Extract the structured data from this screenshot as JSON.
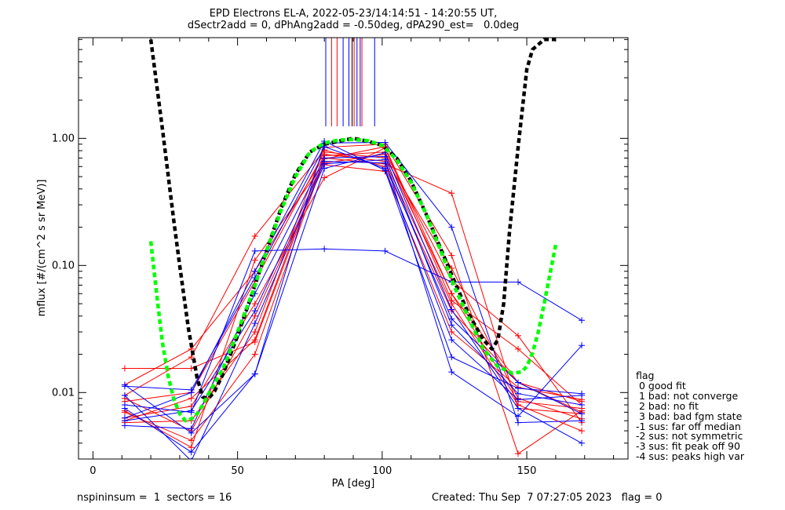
{
  "title_line1": "EPD Electrons EL-A, 2022-05-23/14:14:51 - 14:20:55 UT,",
  "title_line2": "dSectr2add = 0, dPhAng2add = -0.50deg, dPA290_est=   0.0deg",
  "footer_left": "nspininsum =  1  sectors = 16",
  "footer_right": "Created: Thu Sep  7 07:27:05 2023   flag = 0",
  "legend": {
    "title": "flag",
    "items": [
      " 0 good fit",
      " 1 bad: not converge",
      " 2 bad: no fit",
      " 3 bad: bad fgm state",
      "-1 sus: far off median",
      "-2 sus: not symmetric",
      "-3 sus: fit peak off 90",
      "-4 sus: peaks high var"
    ]
  },
  "colors": {
    "red": "#ff0000",
    "blue": "#0000ff",
    "fit": "#000000",
    "fit2": "#00ff00",
    "axis": "#000000"
  },
  "chart_data": {
    "type": "line",
    "xlabel": "PA [deg]",
    "ylabel": "mflux [#/(cm^2 s sr MeV)]",
    "xlim": [
      -5,
      185
    ],
    "ylim": [
      0.003,
      6.2
    ],
    "yscale": "log",
    "xticks": [
      0,
      50,
      100,
      150
    ],
    "xtick_labels": [
      "0",
      "50",
      "100",
      "150"
    ],
    "yticks": [
      0.01,
      0.1,
      1.0
    ],
    "ytick_labels": [
      "0.01",
      "0.10",
      "1.00"
    ],
    "series": [
      {
        "color": "red",
        "x": [
          11,
          34,
          56,
          80,
          101,
          124,
          147,
          169
        ],
        "y": [
          0.0155,
          0.0155,
          0.025,
          0.7,
          0.63,
          0.37,
          0.0075,
          0.0068
        ]
      },
      {
        "color": "red",
        "x": [
          11,
          34,
          56,
          80,
          101,
          124,
          147,
          169
        ],
        "y": [
          0.0072,
          0.0037,
          0.11,
          0.64,
          0.75,
          0.06,
          0.012,
          0.007
        ]
      },
      {
        "color": "red",
        "x": [
          11,
          34,
          56,
          80,
          101,
          124,
          147,
          169
        ],
        "y": [
          0.0058,
          0.006,
          0.03,
          0.85,
          0.9,
          0.12,
          0.0033,
          0.0072
        ]
      },
      {
        "color": "red",
        "x": [
          11,
          34,
          56,
          80,
          101,
          124,
          147,
          169
        ],
        "y": [
          0.0095,
          0.019,
          0.17,
          0.81,
          0.6,
          0.044,
          0.012,
          0.0085
        ]
      },
      {
        "color": "red",
        "x": [
          11,
          34,
          56,
          80,
          101,
          124,
          147,
          169
        ],
        "y": [
          0.0115,
          0.022,
          0.09,
          0.73,
          0.78,
          0.076,
          0.028,
          0.0058
        ]
      },
      {
        "color": "red",
        "x": [
          11,
          34,
          56,
          80,
          101,
          124,
          147,
          169
        ],
        "y": [
          0.0063,
          0.0078,
          0.05,
          0.49,
          0.84,
          0.053,
          0.022,
          0.008
        ]
      },
      {
        "color": "red",
        "x": [
          11,
          34,
          56,
          80,
          101,
          124,
          147,
          169
        ],
        "y": [
          0.0085,
          0.01,
          0.075,
          0.78,
          0.7,
          0.095,
          0.009,
          0.0062
        ]
      },
      {
        "color": "red",
        "x": [
          11,
          34,
          56,
          80,
          101,
          124,
          147,
          169
        ],
        "y": [
          0.007,
          0.0042,
          0.02,
          0.69,
          0.86,
          0.06,
          0.0085,
          0.0075
        ]
      },
      {
        "color": "red",
        "x": [
          11,
          34,
          56,
          80,
          101,
          124,
          147,
          169
        ],
        "y": [
          0.009,
          0.005,
          0.04,
          0.62,
          0.55,
          0.03,
          0.011,
          0.0088
        ]
      },
      {
        "color": "red",
        "x": [
          11,
          34,
          56,
          80,
          101,
          124,
          147,
          169
        ],
        "y": [
          0.006,
          0.009,
          0.026,
          0.75,
          0.66,
          0.05,
          0.008,
          0.005
        ]
      },
      {
        "color": "blue",
        "x": [
          11,
          34,
          56,
          80,
          101,
          124,
          147,
          169
        ],
        "y": [
          0.0115,
          0.0048,
          0.014,
          0.92,
          0.93,
          0.2,
          0.0058,
          0.006
        ]
      },
      {
        "color": "blue",
        "x": [
          11,
          34,
          56,
          80,
          101,
          124,
          147,
          169
        ],
        "y": [
          0.008,
          0.007,
          0.13,
          0.135,
          0.13,
          0.074,
          0.074,
          0.037
        ]
      },
      {
        "color": "blue",
        "x": [
          11,
          34,
          56,
          80,
          101,
          124,
          147,
          169
        ],
        "y": [
          0.0063,
          0.01,
          0.09,
          0.95,
          0.56,
          0.019,
          0.0108,
          0.0098
        ]
      },
      {
        "color": "blue",
        "x": [
          11,
          34,
          56,
          80,
          101,
          124,
          147,
          169
        ],
        "y": [
          0.0095,
          0.0029,
          0.035,
          0.63,
          0.68,
          0.0145,
          0.0065,
          0.0235
        ]
      },
      {
        "color": "blue",
        "x": [
          11,
          34,
          56,
          80,
          101,
          124,
          147,
          169
        ],
        "y": [
          0.0055,
          0.0052,
          0.06,
          0.7,
          0.72,
          0.034,
          0.0098,
          0.008
        ]
      },
      {
        "color": "blue",
        "x": [
          11,
          34,
          56,
          80,
          101,
          124,
          147,
          169
        ],
        "y": [
          0.0075,
          0.0034,
          0.014,
          0.58,
          0.77,
          0.045,
          0.0075,
          0.004
        ]
      },
      {
        "color": "blue",
        "x": [
          11,
          34,
          56,
          80,
          101,
          124,
          147,
          169
        ],
        "y": [
          0.0112,
          0.0105,
          0.08,
          0.86,
          0.58,
          0.026,
          0.0088,
          0.0095
        ]
      },
      {
        "color": "blue",
        "x": [
          11,
          34,
          56,
          80,
          101,
          124,
          147,
          169
        ],
        "y": [
          0.006,
          0.0072,
          0.044,
          0.66,
          0.64,
          0.038,
          0.012,
          0.0068
        ]
      }
    ],
    "fit_curves": [
      {
        "color": "fit",
        "style": "dashed",
        "x": [
          20,
          24,
          28,
          30,
          33,
          36,
          38,
          40,
          42,
          45,
          50,
          55,
          60,
          65,
          70,
          75,
          80,
          85,
          90,
          95,
          100,
          105,
          110,
          115,
          120,
          125,
          130,
          135,
          138,
          140,
          142,
          144,
          147,
          150,
          152,
          156,
          160
        ],
        "y": [
          6.0,
          1.2,
          0.22,
          0.1,
          0.032,
          0.013,
          0.0092,
          0.009,
          0.0102,
          0.014,
          0.028,
          0.06,
          0.13,
          0.28,
          0.52,
          0.78,
          0.9,
          0.95,
          1.0,
          0.95,
          0.88,
          0.7,
          0.46,
          0.26,
          0.14,
          0.075,
          0.041,
          0.026,
          0.022,
          0.026,
          0.05,
          0.18,
          0.85,
          3.5,
          5.0,
          6.0,
          6.0
        ]
      },
      {
        "color": "fit2",
        "style": "dashed",
        "x": [
          20,
          22,
          24,
          26,
          28,
          30,
          32,
          34,
          36,
          38,
          40,
          45,
          50,
          55,
          60,
          65,
          70,
          75,
          80,
          85,
          90,
          95,
          100,
          105,
          110,
          115,
          120,
          125,
          130,
          135,
          140,
          145,
          148,
          150,
          152,
          154,
          156,
          158,
          160
        ],
        "y": [
          0.155,
          0.06,
          0.025,
          0.0135,
          0.0088,
          0.0068,
          0.006,
          0.0062,
          0.0068,
          0.008,
          0.0098,
          0.0155,
          0.03,
          0.06,
          0.13,
          0.27,
          0.5,
          0.78,
          0.92,
          0.97,
          0.98,
          0.96,
          0.88,
          0.68,
          0.45,
          0.26,
          0.135,
          0.068,
          0.038,
          0.022,
          0.016,
          0.0142,
          0.0145,
          0.016,
          0.0205,
          0.03,
          0.05,
          0.085,
          0.145
        ]
      }
    ],
    "peak_markers": [
      {
        "color": "blue",
        "x": [
          80.5,
          86.5,
          88.5,
          91.3,
          92.4,
          97.4
        ]
      },
      {
        "color": "red",
        "x": [
          82.5,
          84.4,
          90.3,
          93.0
        ]
      },
      {
        "color": "fit",
        "x": [
          89.6
        ]
      }
    ]
  }
}
